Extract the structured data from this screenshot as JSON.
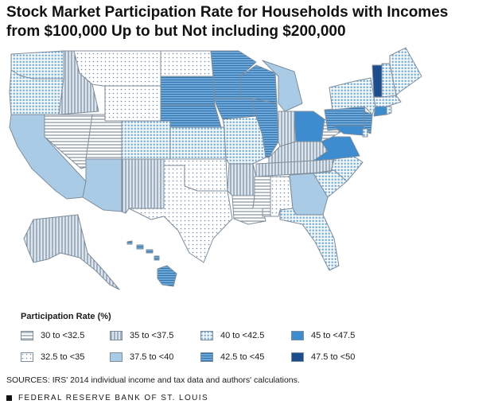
{
  "title": "Stock Market Participation Rate for Households with Incomes from $100,000 Up to but Not including $200,000",
  "legend": {
    "title": "Participation Rate (%)",
    "items": [
      {
        "label": "30 to <32.5",
        "pattern": "hlines-white"
      },
      {
        "label": "32.5 to <35",
        "pattern": "dots-white"
      },
      {
        "label": "35 to <37.5",
        "pattern": "vlines-light"
      },
      {
        "label": "37.5 to <40",
        "pattern": "solid-light"
      },
      {
        "label": "40 to <42.5",
        "pattern": "grid-light"
      },
      {
        "label": "42.5 to <45",
        "pattern": "hlines-mid"
      },
      {
        "label": "45 to <47.5",
        "pattern": "solid-mid"
      },
      {
        "label": "47.5 to <50",
        "pattern": "solid-dark"
      }
    ]
  },
  "colors": {
    "light_blue": "#a9cbe6",
    "mid_blue": "#4a90cc",
    "dark_blue": "#1c4e8f",
    "outline": "#7f8e9c"
  },
  "sources": "SOURCES: IRS' 2014 individual income and tax data and authors' calculations.",
  "footer": "FEDERAL RESERVE BANK OF ST. LOUIS"
}
